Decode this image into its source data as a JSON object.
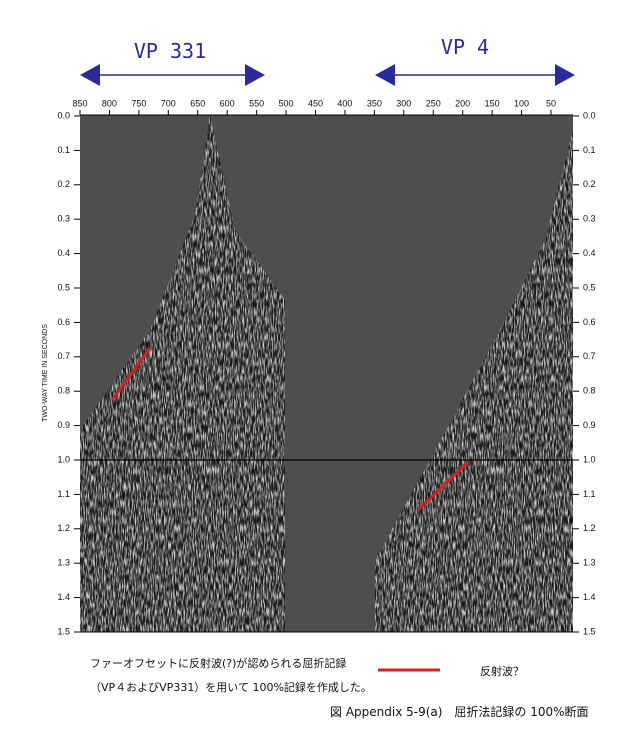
{
  "vp_labels": [
    "VP 331",
    "VP 4"
  ],
  "x_axis": {
    "ticks": [
      "850",
      "800",
      "750",
      "700",
      "650",
      "600",
      "550",
      "500",
      "450",
      "400",
      "350",
      "300",
      "250",
      "200",
      "150",
      "100",
      "50"
    ]
  },
  "y_axis": {
    "label": "TWO-WAY TIME IN SECONDS",
    "ticks": [
      "0.0",
      "0.1",
      "0.2",
      "0.3",
      "0.4",
      "0.5",
      "0.6",
      "0.7",
      "0.8",
      "0.9",
      "1.0",
      "1.1",
      "1.2",
      "1.3",
      "1.4",
      "1.5"
    ]
  },
  "caption": {
    "lines": [
      "ファーオフセットに反射波(?)が認められる屈折記録",
      "（VP４およびVP331）を用いて 100%記録を作成した。"
    ]
  },
  "legend": {
    "label": "反射波？"
  },
  "figure_title": "図 Appendix 5-9(a)　屈折法記録の 100%断面"
}
